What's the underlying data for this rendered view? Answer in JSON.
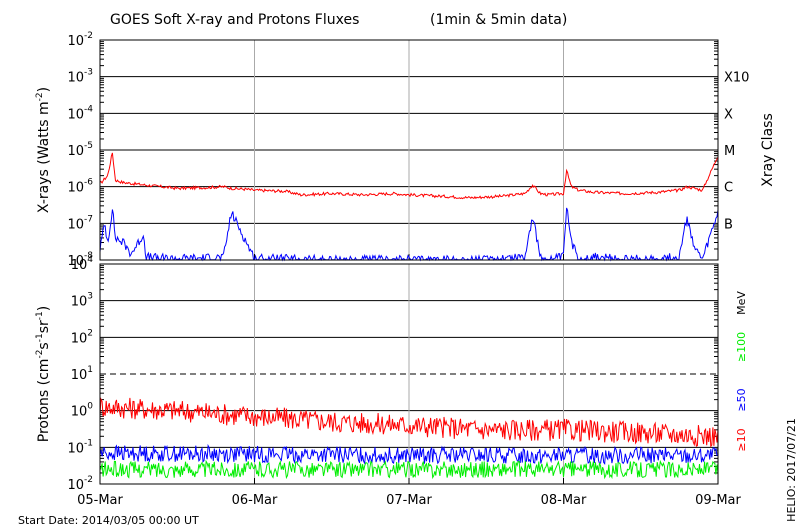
{
  "chart_data": [
    {
      "type": "line",
      "title": "GOES Soft X-ray and Protons Fluxes",
      "title_suffix": "(1min & 5min data)",
      "ylabel": "X-rays (Watts m",
      "ylabel_exp": "-2",
      "ylabel_close": ")",
      "yscale": "log",
      "ylim": [
        1e-08,
        0.01
      ],
      "y_ticks": [
        {
          "base": "10",
          "exp": "-8"
        },
        {
          "base": "10",
          "exp": "-7"
        },
        {
          "base": "10",
          "exp": "-6"
        },
        {
          "base": "10",
          "exp": "-5"
        },
        {
          "base": "10",
          "exp": "-4"
        },
        {
          "base": "10",
          "exp": "-3"
        },
        {
          "base": "10",
          "exp": "-2"
        }
      ],
      "right_axis_label": "Xray Class",
      "xray_classes": [
        "B",
        "C",
        "M",
        "X",
        "X10"
      ],
      "x_categories": [
        "05-Mar",
        "06-Mar",
        "07-Mar",
        "08-Mar",
        "09-Mar"
      ],
      "series": [
        {
          "color": "#ff0000",
          "x": [
            0.0,
            0.05,
            0.08,
            0.1,
            0.15,
            0.3,
            0.5,
            0.7,
            0.8,
            0.85,
            0.95,
            1.0,
            1.2,
            1.3,
            1.5,
            1.7,
            1.9,
            2.0,
            2.2,
            2.4,
            2.6,
            2.75,
            2.8,
            2.85,
            2.9,
            3.0,
            3.02,
            3.05,
            3.1,
            3.2,
            3.4,
            3.6,
            3.75,
            3.8,
            3.9,
            4.0
          ],
          "values": [
            1.2e-06,
            2e-06,
            8.5e-06,
            1.5e-06,
            1.3e-06,
            1.1e-06,
            9e-07,
            9.5e-07,
            1e-06,
            9e-07,
            8.5e-07,
            8e-07,
            7.5e-07,
            6e-07,
            6.5e-07,
            6e-07,
            6.5e-07,
            6e-07,
            5.5e-07,
            5e-07,
            5.5e-07,
            6.5e-07,
            1.1e-06,
            6.5e-07,
            6e-07,
            6.5e-07,
            2.8e-06,
            1e-06,
            8e-07,
            7e-07,
            6.5e-07,
            7e-07,
            8e-07,
            1e-06,
            8e-07,
            7e-06
          ]
        },
        {
          "color": "#0000ff",
          "x": [
            0.0,
            0.03,
            0.05,
            0.08,
            0.1,
            0.15,
            0.2,
            0.25,
            0.28,
            0.3,
            0.4,
            0.6,
            0.8,
            0.85,
            1.0,
            1.5,
            2.0,
            2.5,
            2.75,
            2.8,
            2.85,
            2.9,
            3.0,
            3.02,
            3.05,
            3.1,
            3.2,
            3.4,
            3.6,
            3.75,
            3.8,
            3.85,
            3.9,
            4.0
          ],
          "values": [
            2e-08,
            1e-07,
            3e-08,
            2.5e-07,
            4e-08,
            3e-08,
            1.5e-08,
            3e-08,
            5e-08,
            1.2e-08,
            1.1e-08,
            1.1e-08,
            1.2e-08,
            2e-07,
            1.1e-08,
            1e-08,
            1e-08,
            1e-08,
            1.3e-08,
            1.5e-07,
            1.2e-08,
            1e-08,
            1.2e-08,
            3e-07,
            3e-08,
            1.1e-08,
            1.2e-08,
            1e-08,
            1.1e-08,
            1.2e-08,
            1.5e-07,
            2e-08,
            1e-08,
            2e-07
          ]
        }
      ]
    },
    {
      "type": "line",
      "ylabel": "Protons (cm",
      "ylabel_parts": [
        "-2",
        "s",
        "-1",
        "sr",
        "-1",
        ")"
      ],
      "yscale": "log",
      "ylim": [
        0.01,
        10000
      ],
      "y_ticks": [
        {
          "base": "10",
          "exp": "-2"
        },
        {
          "base": "10",
          "exp": "-1"
        },
        {
          "base": "10",
          "exp": "0"
        },
        {
          "base": "10",
          "exp": "1"
        },
        {
          "base": "10",
          "exp": "2"
        },
        {
          "base": "10",
          "exp": "3"
        },
        {
          "base": "10",
          "exp": "4"
        }
      ],
      "threshold_line": 10,
      "right_axis_label": "MeV",
      "x_categories": [
        "05-Mar",
        "06-Mar",
        "07-Mar",
        "08-Mar",
        "09-Mar"
      ],
      "series": [
        {
          "name": "≥10",
          "color": "#ff0000",
          "x": [
            0.0,
            0.5,
            1.0,
            1.5,
            2.0,
            2.5,
            3.0,
            3.5,
            4.0
          ],
          "values": [
            1.3,
            1.0,
            0.7,
            0.5,
            0.4,
            0.3,
            0.3,
            0.25,
            0.2
          ]
        },
        {
          "name": "≥50",
          "color": "#0000ff",
          "x": [
            0.0,
            1.0,
            2.0,
            3.0,
            4.0
          ],
          "values": [
            0.07,
            0.065,
            0.06,
            0.06,
            0.06
          ]
        },
        {
          "name": "≥100",
          "color": "#00ee00",
          "x": [
            0.0,
            1.0,
            2.0,
            3.0,
            4.0
          ],
          "values": [
            0.025,
            0.025,
            0.025,
            0.025,
            0.025
          ]
        }
      ]
    }
  ],
  "footer": {
    "start_date": "Start Date: 2014/03/05 00:00 UT",
    "credit": "HELIO: 2017/07/21"
  }
}
